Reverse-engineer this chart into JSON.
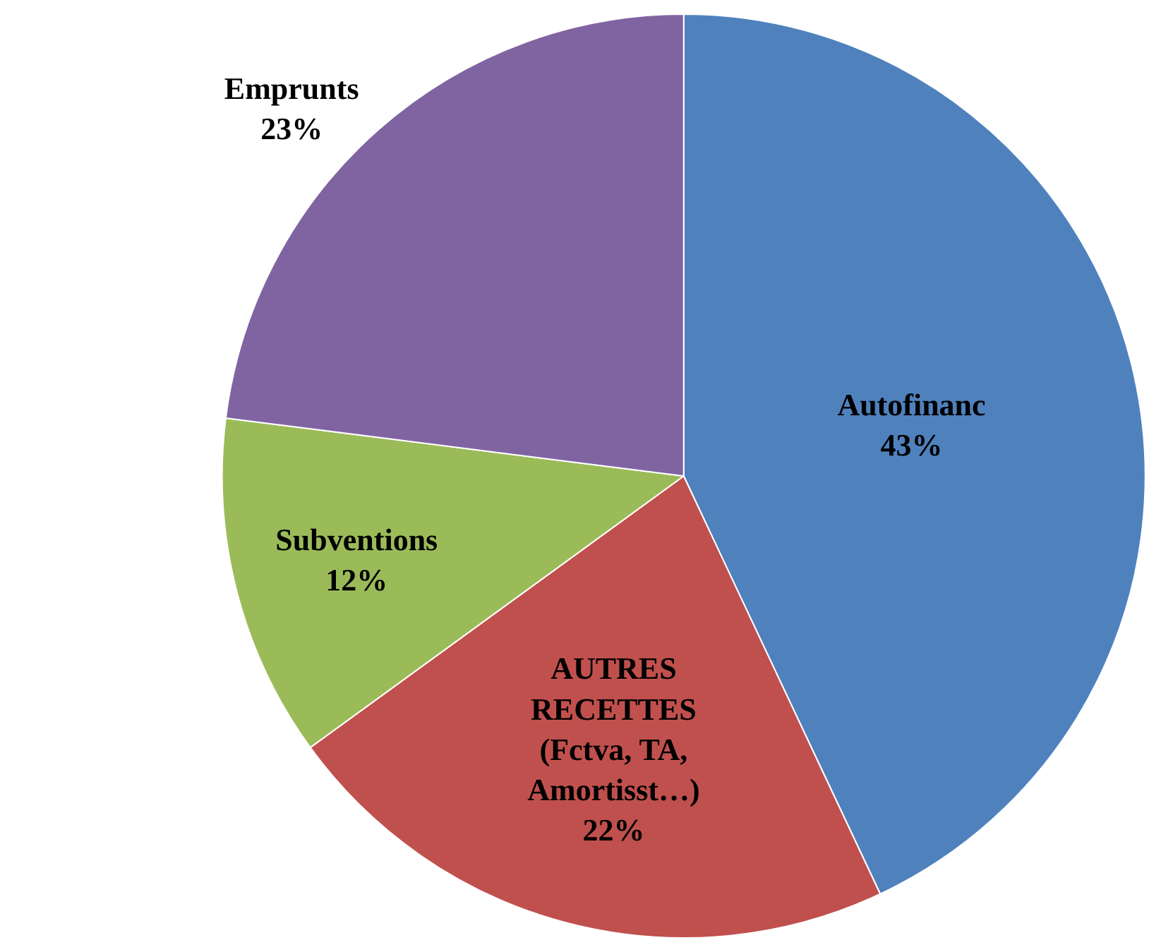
{
  "chart_data": {
    "type": "pie",
    "categories": [
      "Autofinanc",
      "AUTRES\nRECETTES\n(Fctva, TA,\nAmortisst…)",
      "Subventions",
      "Emprunts"
    ],
    "values": [
      43,
      22,
      12,
      23
    ],
    "value_labels": [
      "43%",
      "22%",
      "12%",
      "23%"
    ],
    "colors": [
      "#4f81bd",
      "#c0504d",
      "#9bbb59",
      "#8064a2"
    ],
    "legend": false
  }
}
